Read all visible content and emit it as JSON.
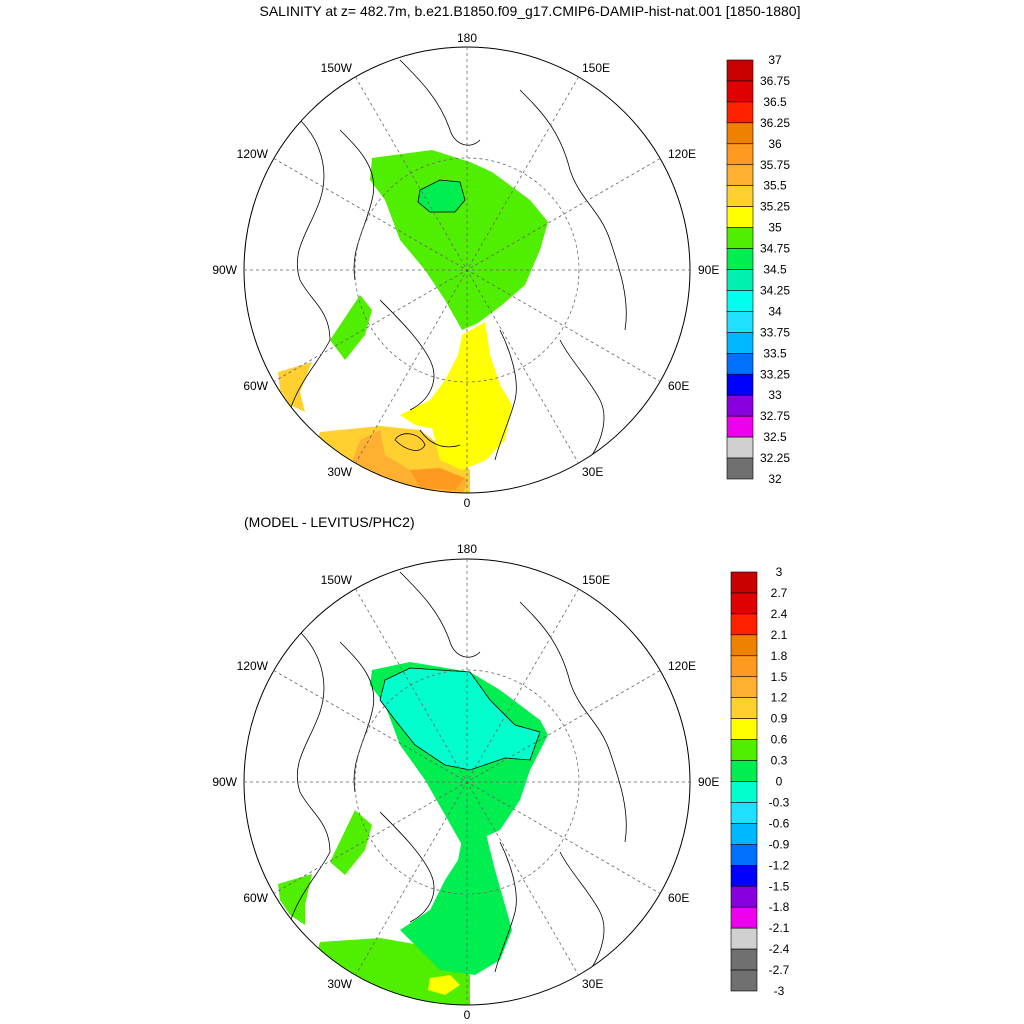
{
  "title": "SALINITY at z= 482.7m, b.e21.B1850.f09_g17.CMIP6-DAMIP-hist-nat.001 [1850-1880]",
  "subtitle": "(MODEL - LEVITUS/PHC2)",
  "longitude_labels": {
    "top": "180",
    "bottom": "0",
    "w150": "150W",
    "e150": "150E",
    "w120": "120W",
    "e120": "120E",
    "w90": "90W",
    "e90": "90E",
    "w60": "60W",
    "e60": "60E",
    "w30": "30W",
    "e30": "30E"
  },
  "colorbar_top": {
    "labels": [
      "37",
      "36.75",
      "36.5",
      "36.25",
      "36",
      "35.75",
      "35.5",
      "35.25",
      "35",
      "34.75",
      "34.5",
      "34.25",
      "34",
      "33.75",
      "33.5",
      "33.25",
      "33",
      "32.75",
      "32.5",
      "32.25",
      "32"
    ],
    "colors": [
      "#c80000",
      "#e00000",
      "#ff2000",
      "#f08000",
      "#ff9a20",
      "#ffb030",
      "#ffd030",
      "#ffff00",
      "#50ee00",
      "#00ee50",
      "#00f0b0",
      "#00ffee",
      "#20e0ff",
      "#00b8ff",
      "#0070ff",
      "#0000ff",
      "#8800dd",
      "#ee00ee",
      "#d0d0d0",
      "#707070"
    ]
  },
  "colorbar_bottom": {
    "labels": [
      "3",
      "2.7",
      "2.4",
      "2.1",
      "1.8",
      "1.5",
      "1.2",
      "0.9",
      "0.6",
      "0.3",
      "0",
      "-0.3",
      "-0.6",
      "-0.9",
      "-1.2",
      "-1.5",
      "-1.8",
      "-2.1",
      "-2.4",
      "-2.7",
      "-3"
    ],
    "colors": [
      "#c80000",
      "#e00000",
      "#ff2000",
      "#f08000",
      "#ff9a20",
      "#ffb030",
      "#ffd030",
      "#ffff00",
      "#50ee00",
      "#00ee50",
      "#00ffcc",
      "#20e0ff",
      "#00b8ff",
      "#0070ff",
      "#0000ff",
      "#8800dd",
      "#ee00ee",
      "#d0d0d0",
      "#707070",
      "#707070"
    ]
  },
  "panels": {
    "top": {
      "description_colors": {
        "arctic_basin": "#50ee00",
        "nordic_seas": "#ffff00",
        "atlantic": "#ffd030",
        "atlantic_warm": "#ffb030",
        "hudson_strait": "#50ee00",
        "core": "#00ee50"
      }
    },
    "bottom": {
      "description_colors": {
        "arctic_basin": "#00ffcc",
        "atlantic": "#00ee50",
        "labrador": "#50ee00",
        "warm_patch": "#ffff00"
      }
    }
  }
}
